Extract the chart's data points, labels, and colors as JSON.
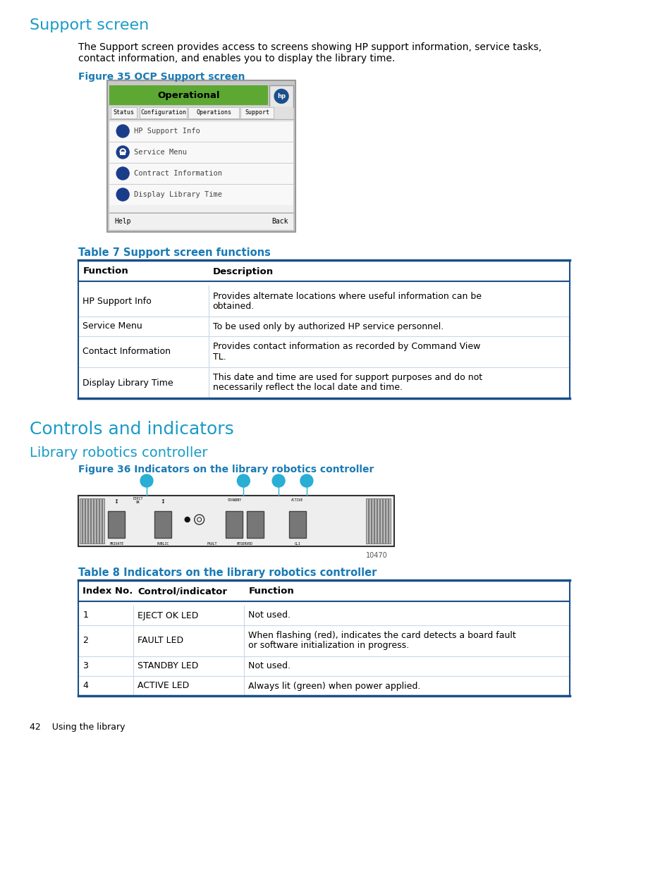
{
  "page_bg": "#ffffff",
  "heading1_color": "#1a9bc7",
  "heading2_color": "#1a9bc7",
  "fig_label_color": "#1a7ab5",
  "table_border_color": "#1a4f8a",
  "table_inner_border": "#c8d8e8",
  "body_text_color": "#000000",
  "section1_title": "Support screen",
  "section1_body1": "The Support screen provides access to screens showing HP support information, service tasks,",
  "section1_body2": "contact information, and enables you to display the library time.",
  "fig35_label": "Figure 35 OCP Support screen",
  "table7_label": "Table 7 Support screen functions",
  "table7_headers": [
    "Function",
    "Description"
  ],
  "table7_rows": [
    [
      "HP Support Info",
      "Provides alternate locations where useful information can be\nobtained."
    ],
    [
      "Service Menu",
      "To be used only by authorized HP service personnel."
    ],
    [
      "Contact Information",
      "Provides contact information as recorded by Command View\nTL."
    ],
    [
      "Display Library Time",
      "This date and time are used for support purposes and do not\nnecessarily reflect the local date and time."
    ]
  ],
  "section2_title": "Controls and indicators",
  "section3_title": "Library robotics controller",
  "fig36_label": "Figure 36 Indicators on the library robotics controller",
  "table8_label": "Table 8 Indicators on the library robotics controller",
  "table8_headers": [
    "Index No.",
    "Control/indicator",
    "Function"
  ],
  "table8_rows": [
    [
      "1",
      "EJECT OK LED",
      "Not used."
    ],
    [
      "2",
      "FAULT LED",
      "When flashing (red), indicates the card detects a board fault\nor software initialization in progress."
    ],
    [
      "3",
      "STANDBY LED",
      "Not used."
    ],
    [
      "4",
      "ACTIVE LED",
      "Always lit (green) when power applied."
    ]
  ],
  "footer_text": "42    Using the library"
}
